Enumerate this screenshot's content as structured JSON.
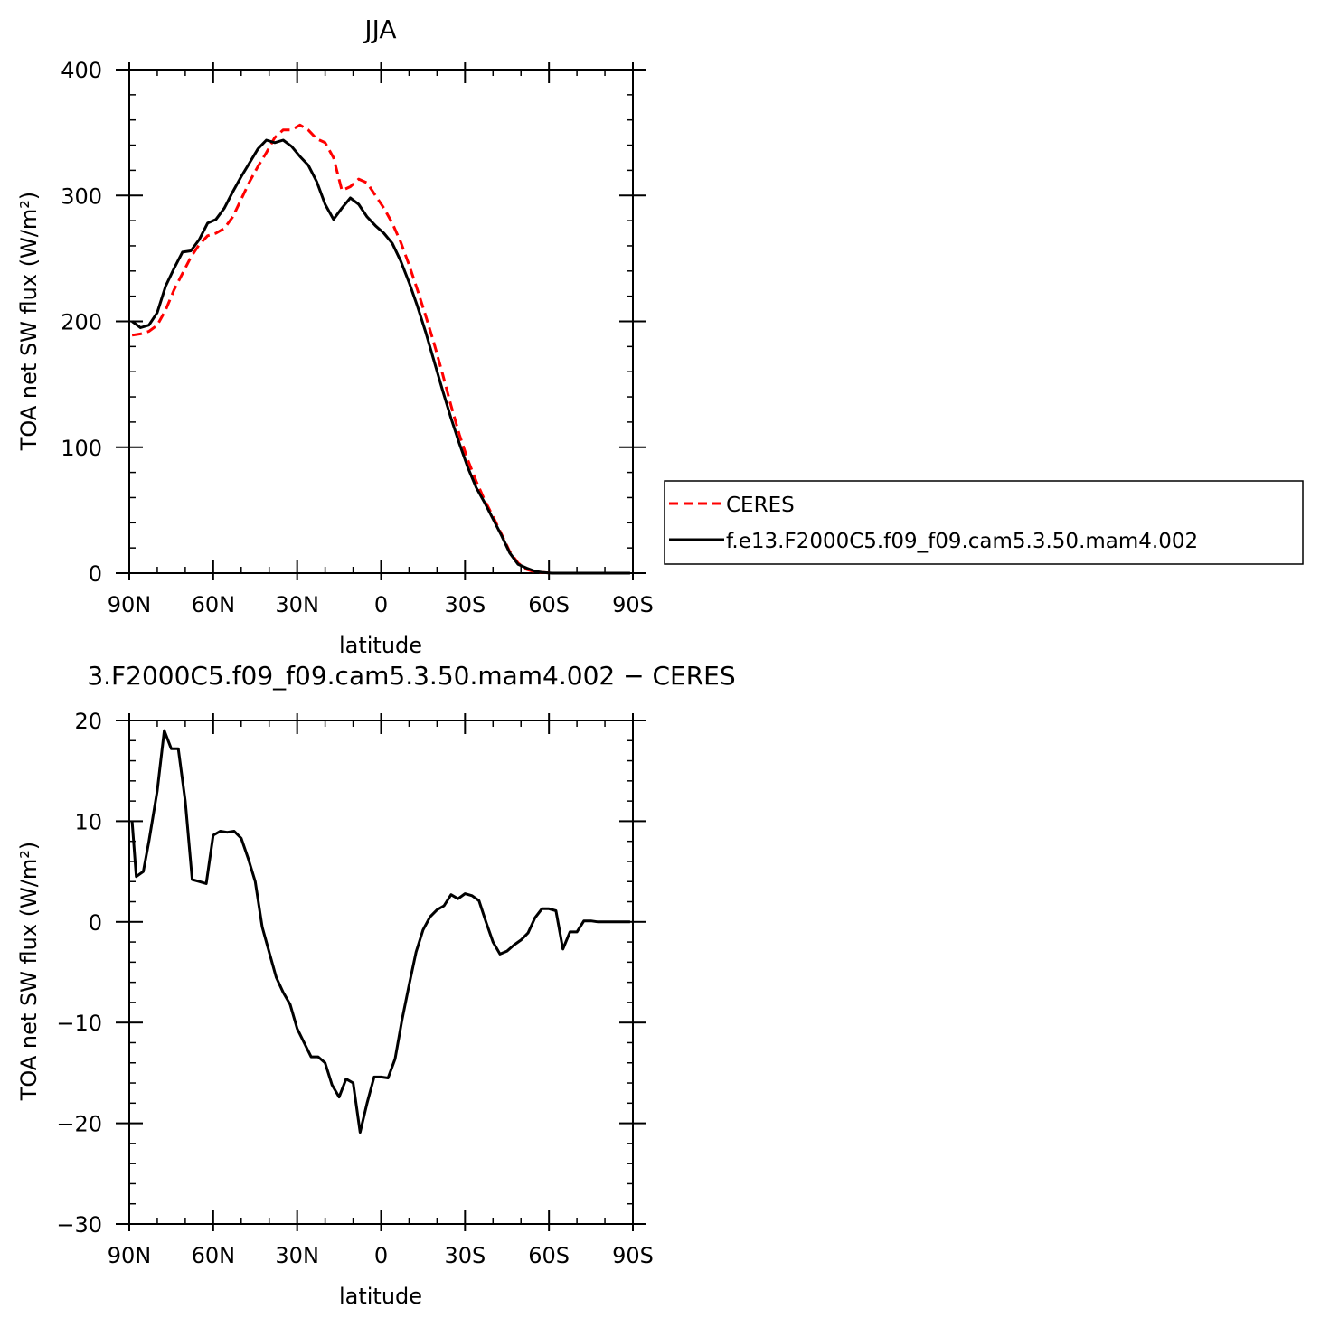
{
  "chart_data": [
    {
      "type": "line",
      "title": "JJA",
      "xlabel": "latitude",
      "ylabel": "TOA net SW flux (W/m²)",
      "xlim": [
        90,
        -90
      ],
      "ylim": [
        0,
        400
      ],
      "xticks": [
        90,
        60,
        30,
        0,
        -30,
        -60,
        -90
      ],
      "xtick_labels": [
        "90N",
        "60N",
        "30N",
        "0",
        "30S",
        "60S",
        "90S"
      ],
      "yticks": [
        0,
        100,
        200,
        300,
        400
      ],
      "ytick_labels": [
        "0",
        "100",
        "200",
        "300",
        "400"
      ],
      "grid": false,
      "legend_position": "right",
      "series": [
        {
          "name": "CERES",
          "color": "#ff0000",
          "style": "dashed",
          "x": [
            89,
            86,
            83,
            80,
            77,
            74,
            71,
            68,
            65,
            62,
            59,
            56,
            53,
            50,
            47,
            44,
            41,
            38,
            35,
            32,
            29,
            26,
            23,
            20,
            17,
            14,
            11,
            8,
            5,
            2,
            -1,
            -4,
            -7,
            -10,
            -13,
            -16,
            -19,
            -22,
            -25,
            -28,
            -31,
            -34,
            -37,
            -40,
            -43,
            -46,
            -49,
            -52,
            -55,
            -58,
            -61,
            -64,
            -67,
            -70,
            -73,
            -76,
            -79,
            -82,
            -85,
            -89
          ],
          "values": [
            189,
            190,
            192,
            197,
            209,
            225,
            238,
            251,
            261,
            268,
            270,
            274,
            283,
            297,
            311,
            323,
            334,
            346,
            352,
            352,
            356,
            352,
            345,
            342,
            330,
            304,
            307,
            313,
            310,
            300,
            290,
            278,
            263,
            245,
            225,
            204,
            182,
            158,
            133,
            110,
            90,
            73,
            58,
            45,
            31,
            17,
            8,
            3,
            1,
            0.5,
            0,
            0,
            0,
            0,
            0,
            0,
            0,
            0,
            0,
            0
          ]
        },
        {
          "name": "f.e13.F2000C5.f09_f09.cam5.3.50.mam4.002",
          "color": "#000000",
          "style": "solid",
          "x": [
            89,
            86,
            83,
            80,
            77,
            74,
            71,
            68,
            65,
            62,
            59,
            56,
            53,
            50,
            47,
            44,
            41,
            38,
            35,
            32,
            29,
            26,
            23,
            20,
            17,
            14,
            11,
            8,
            5,
            2,
            -1,
            -4,
            -7,
            -10,
            -13,
            -16,
            -19,
            -22,
            -25,
            -28,
            -31,
            -34,
            -37,
            -40,
            -43,
            -46,
            -49,
            -52,
            -55,
            -58,
            -61,
            -64,
            -67,
            -70,
            -73,
            -76,
            -79,
            -82,
            -85,
            -89
          ],
          "values": [
            200,
            195,
            197,
            207,
            228,
            242,
            255,
            256,
            265,
            278,
            281,
            290,
            303,
            315,
            326,
            337,
            344,
            342,
            344,
            339,
            331,
            324,
            311,
            293,
            281,
            290,
            298,
            293,
            283,
            276,
            270,
            262,
            248,
            231,
            212,
            191,
            168,
            145,
            123,
            103,
            84,
            68,
            56,
            43,
            30,
            16,
            7,
            4,
            1.5,
            0.5,
            0,
            0,
            0,
            0,
            0,
            0,
            0,
            0,
            0,
            0
          ]
        }
      ]
    },
    {
      "type": "line",
      "title": "3.F2000C5.f09_f09.cam5.3.50.mam4.002 − CERES",
      "xlabel": "latitude",
      "ylabel": "TOA net SW flux (W/m²)",
      "xlim": [
        90,
        -90
      ],
      "ylim": [
        -30,
        20
      ],
      "xticks": [
        90,
        60,
        30,
        0,
        -30,
        -60,
        -90
      ],
      "xtick_labels": [
        "90N",
        "60N",
        "30N",
        "0",
        "30S",
        "60S",
        "90S"
      ],
      "yticks": [
        -30,
        -20,
        -10,
        0,
        10,
        20
      ],
      "ytick_labels": [
        "−30",
        "−20",
        "−10",
        "0",
        "10",
        "20"
      ],
      "grid": false,
      "series": [
        {
          "color": "#000000",
          "style": "solid",
          "x": [
            89,
            87.5,
            85,
            83,
            80,
            77.5,
            75,
            72.5,
            70,
            67.5,
            65,
            62.5,
            60,
            57.5,
            55,
            52.5,
            50,
            47.5,
            45,
            42.5,
            40,
            37.5,
            35,
            32.5,
            30,
            27.5,
            25,
            22.5,
            20,
            17.5,
            15,
            12.5,
            10,
            7.5,
            5,
            2.5,
            0,
            -2.5,
            -5,
            -7.5,
            -10,
            -12.5,
            -15,
            -17.5,
            -20,
            -22.5,
            -25,
            -27.5,
            -30,
            -32.5,
            -35,
            -37.5,
            -40,
            -42.5,
            -45,
            -47.5,
            -50,
            -52.5,
            -55,
            -57.5,
            -60,
            -62.5,
            -65,
            -67.5,
            -70,
            -72.5,
            -75,
            -77.5,
            -80,
            -82.5,
            -85,
            -89
          ],
          "values": [
            10,
            4.5,
            5,
            8,
            13,
            19,
            17.2,
            17.2,
            12,
            4.2,
            4,
            3.8,
            8.6,
            9,
            8.9,
            9,
            8.3,
            6.3,
            4,
            -0.5,
            -3,
            -5.5,
            -7,
            -8.2,
            -10.6,
            -12,
            -13.4,
            -13.4,
            -14,
            -16.2,
            -17.4,
            -15.6,
            -16,
            -20.9,
            -18,
            -15.4,
            -15.4,
            -15.5,
            -13.6,
            -9.7,
            -6.3,
            -3,
            -0.8,
            0.5,
            1.2,
            1.6,
            2.7,
            2.3,
            2.8,
            2.6,
            2.1,
            0,
            -2,
            -3.2,
            -2.9,
            -2.3,
            -1.8,
            -1.1,
            0.4,
            1.3,
            1.3,
            1.1,
            -2.7,
            -1,
            -1,
            0.1,
            0.1,
            0,
            0,
            0,
            0,
            0
          ]
        }
      ]
    }
  ]
}
